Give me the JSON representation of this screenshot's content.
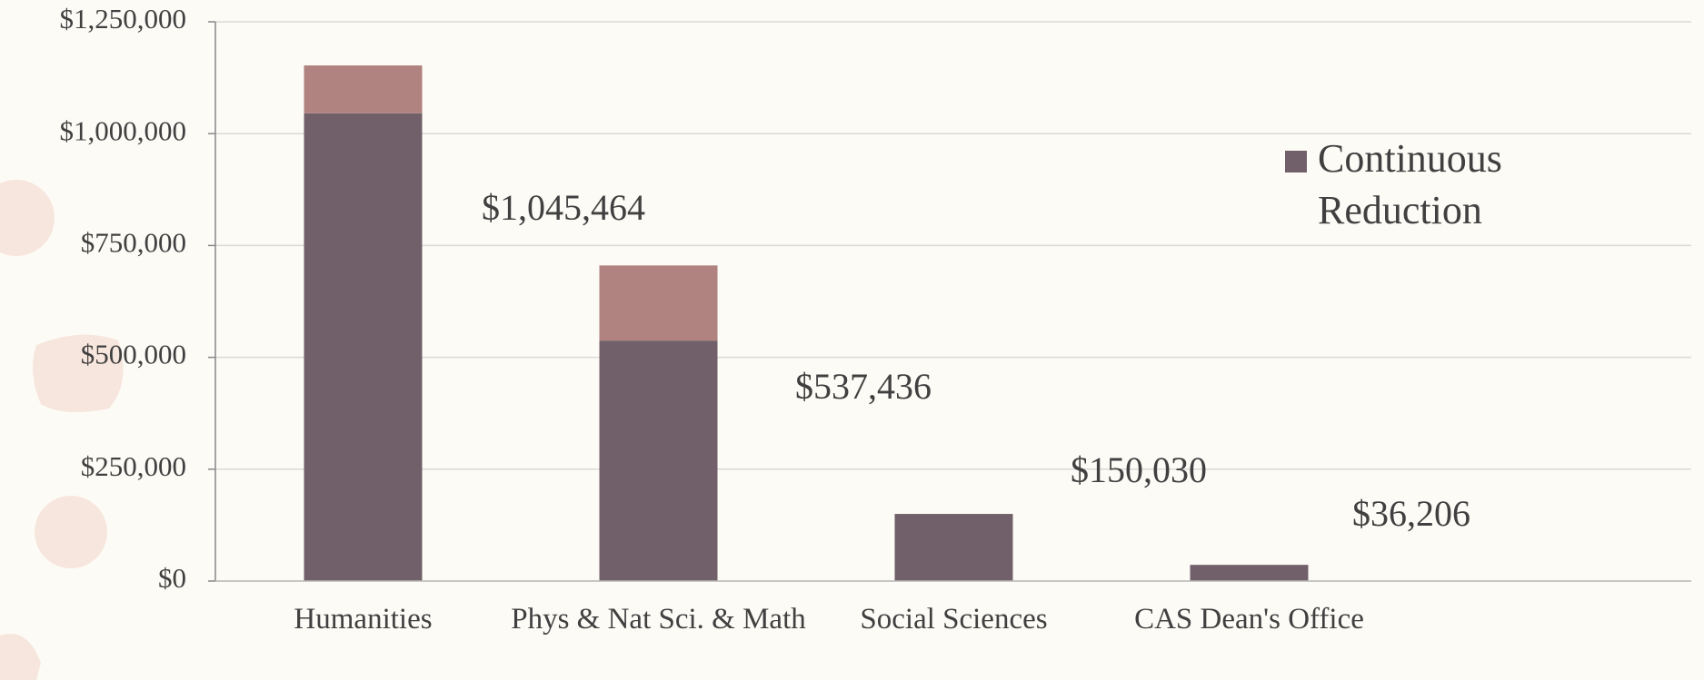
{
  "chart_data": {
    "type": "bar",
    "stacked": true,
    "categories": [
      "Humanities",
      "Phys & Nat Sci. & Math",
      "Social Sciences",
      "CAS Dean's Office"
    ],
    "series": [
      {
        "name": "Continuous Reduction",
        "color": "#716069",
        "values": [
          1045464,
          537436,
          150030,
          36206
        ],
        "value_labels": [
          "$1,045,464",
          "$537,436",
          "$150,030",
          "$36,206"
        ]
      },
      {
        "color": "#b08280",
        "values": [
          107000,
          168000,
          0,
          0
        ]
      }
    ],
    "ylim": [
      0,
      1250000
    ],
    "yticks": [
      {
        "value": 0,
        "label": "$0"
      },
      {
        "value": 250000,
        "label": "$250,000"
      },
      {
        "value": 500000,
        "label": "$500,000"
      },
      {
        "value": 750000,
        "label": "$750,000"
      },
      {
        "value": 1000000,
        "label": "$1,000,000"
      },
      {
        "value": 1250000,
        "label": "$1,250,000"
      }
    ],
    "grid": true,
    "legend": "right"
  }
}
